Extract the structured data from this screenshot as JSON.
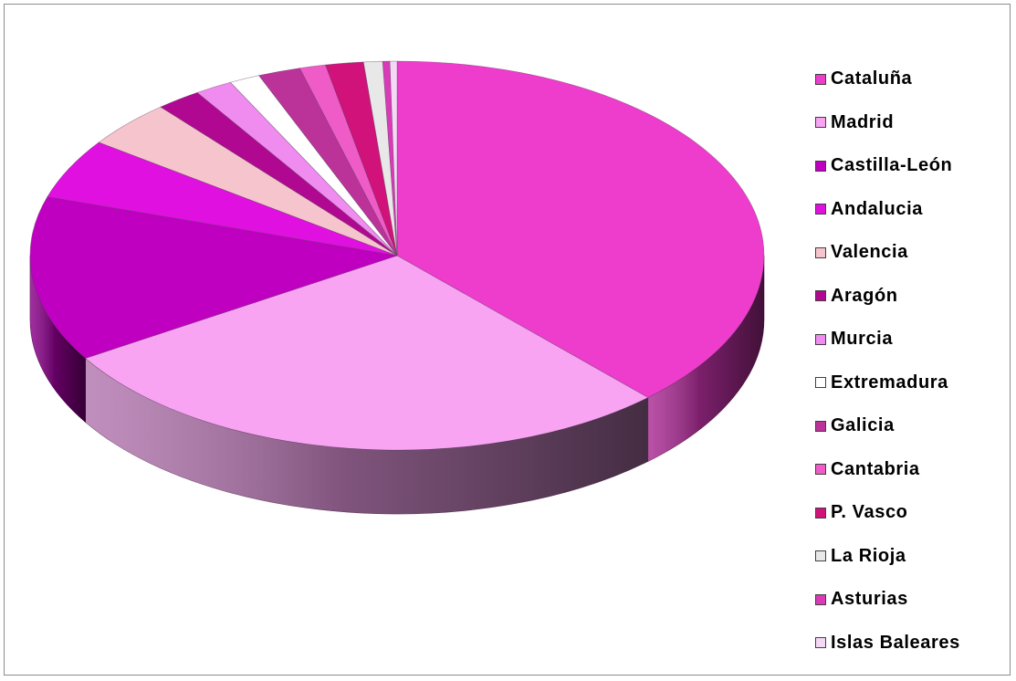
{
  "chart_data": {
    "type": "pie",
    "style": "3d-exploded-perspective",
    "title": "",
    "legend_position": "right",
    "slices": [
      {
        "label": "Cataluña",
        "value": 36.5,
        "color": "#ee3ccd"
      },
      {
        "label": "Madrid",
        "value": 27.0,
        "color": "#f8a4f3"
      },
      {
        "label": "Castilla-León",
        "value": 13.2,
        "color": "#c000c0"
      },
      {
        "label": "Andalucia",
        "value": 4.8,
        "color": "#e010e0"
      },
      {
        "label": "Valencia",
        "value": 3.8,
        "color": "#f6c4cc"
      },
      {
        "label": "Aragón",
        "value": 1.9,
        "color": "#b00890"
      },
      {
        "label": "Murcia",
        "value": 1.6,
        "color": "#f08cf0"
      },
      {
        "label": "Extremadura",
        "value": 1.3,
        "color": "#ffffff"
      },
      {
        "label": "Galicia",
        "value": 1.8,
        "color": "#bb3399"
      },
      {
        "label": "Cantabria",
        "value": 1.1,
        "color": "#ef5cc8"
      },
      {
        "label": "P. Vasco",
        "value": 1.6,
        "color": "#d0127a"
      },
      {
        "label": "La Rioja",
        "value": 0.8,
        "color": "#e8e8e8"
      },
      {
        "label": "Asturias",
        "value": 0.3,
        "color": "#d93bb8"
      },
      {
        "label": "Islas Baleares",
        "value": 0.3,
        "color": "#f5d8f5"
      }
    ]
  }
}
